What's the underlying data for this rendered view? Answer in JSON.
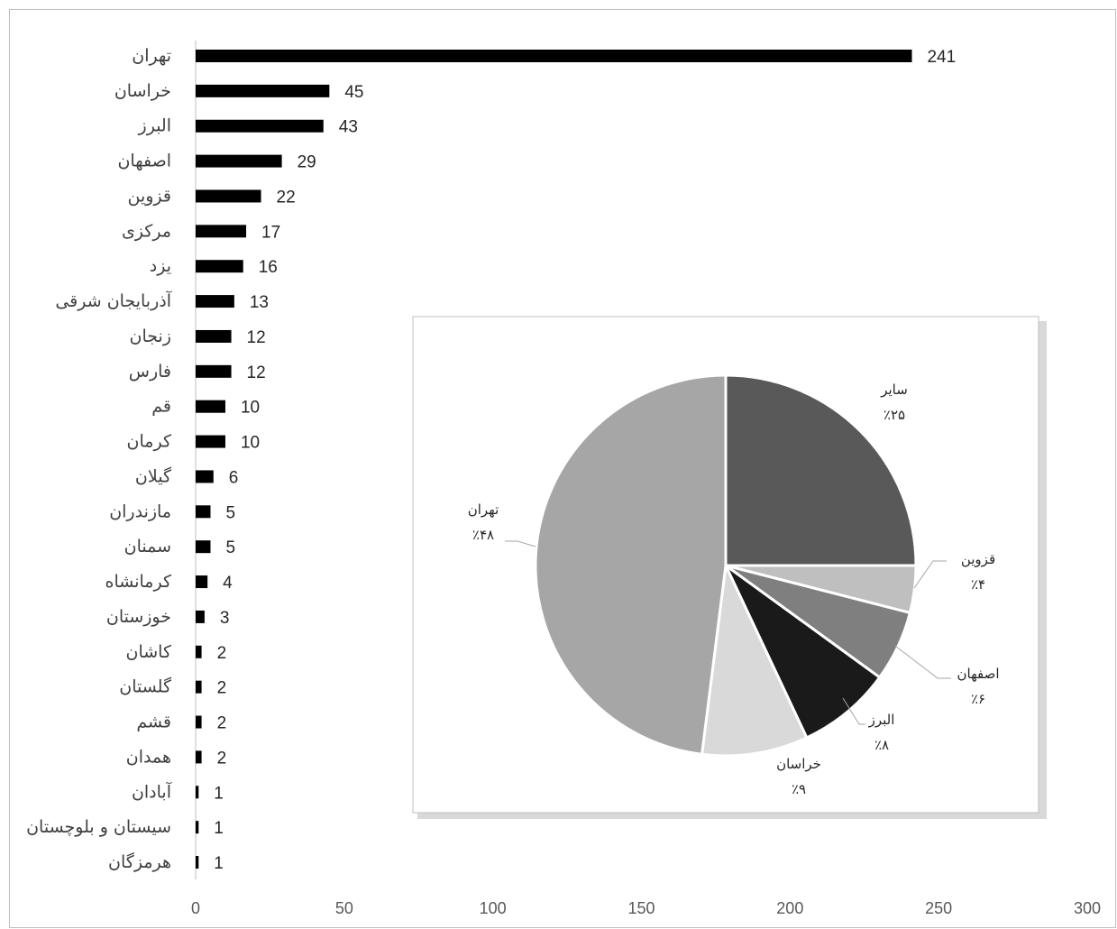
{
  "chart_data": [
    {
      "type": "bar",
      "orientation": "horizontal",
      "categories": [
        "تهران",
        "خراسان",
        "البرز",
        "اصفهان",
        "قزوین",
        "مرکزی",
        "یزد",
        "آذربایجان شرقی",
        "زنجان",
        "فارس",
        "قم",
        "کرمان",
        "گیلان",
        "مازندران",
        "سمنان",
        "کرمانشاه",
        "خوزستان",
        "کاشان",
        "گلستان",
        "قشم",
        "همدان",
        "آبادان",
        "سیستان و بلوچستان",
        "هرمزگان"
      ],
      "values": [
        241,
        45,
        43,
        29,
        22,
        17,
        16,
        13,
        12,
        12,
        10,
        10,
        6,
        5,
        5,
        4,
        3,
        2,
        2,
        2,
        2,
        1,
        1,
        1
      ],
      "value_labels": [
        "241",
        "45",
        "43",
        "29",
        "22",
        "17",
        "16",
        "13",
        "12",
        "12",
        "10",
        "10",
        "6",
        "5",
        "5",
        "4",
        "3",
        "2",
        "2",
        "2",
        "2",
        "1",
        "1",
        "1"
      ],
      "xlim": [
        0,
        300
      ],
      "xticks": [
        0,
        50,
        100,
        150,
        200,
        250,
        300
      ],
      "xtick_labels": [
        "0",
        "50",
        "100",
        "150",
        "200",
        "250",
        "300"
      ],
      "bar_color": "#000000",
      "grid": false
    },
    {
      "type": "pie",
      "slices": [
        {
          "label": "سایر",
          "percent_label": "٪۲۵",
          "value": 25,
          "color": "#595959"
        },
        {
          "label": "قزوین",
          "percent_label": "٪۴",
          "value": 4,
          "color": "#bfbfbf"
        },
        {
          "label": "اصفهان",
          "percent_label": "٪۶",
          "value": 6,
          "color": "#7f7f7f"
        },
        {
          "label": "البرز",
          "percent_label": "٪۸",
          "value": 8,
          "color": "#1a1a1a"
        },
        {
          "label": "خراسان",
          "percent_label": "٪۹",
          "value": 9,
          "color": "#d9d9d9"
        },
        {
          "label": "تهران",
          "percent_label": "٪۴۸",
          "value": 48,
          "color": "#a6a6a6"
        }
      ],
      "start_angle_deg": 0,
      "direction": "clockwise"
    }
  ]
}
